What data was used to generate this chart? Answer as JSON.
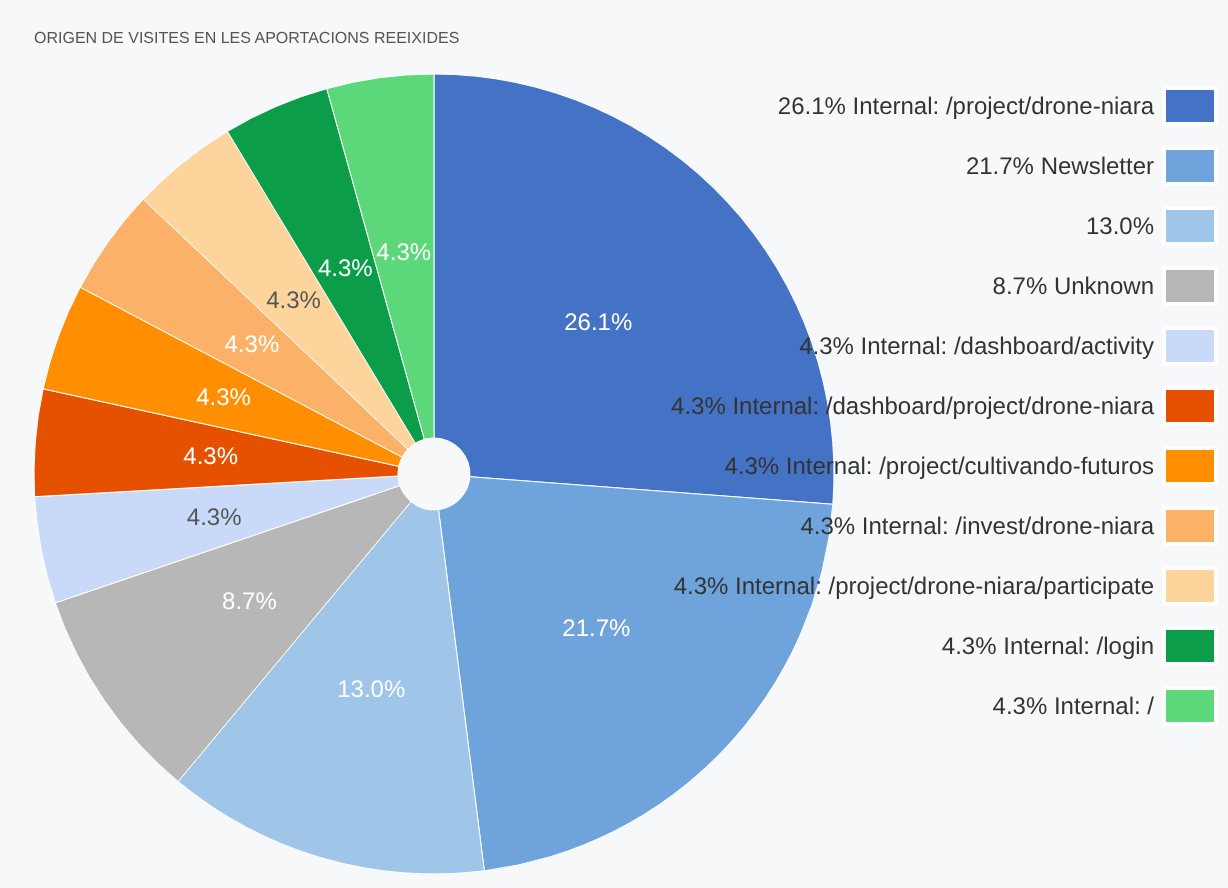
{
  "chart_data": {
    "type": "pie",
    "title": "ORIGEN DE VISITES EN LES APORTACIONS REEIXIDES",
    "categories": [
      "26.1% Internal: /project/drone-niara",
      "21.7% Newsletter",
      "13.0%",
      "8.7% Unknown",
      "4.3% Internal: /dashboard/activity",
      "4.3% Internal: /dashboard/project/drone-niara",
      "4.3% Internal: /project/cultivando-futuros",
      "4.3% Internal: /invest/drone-niara",
      "4.3% Internal: /project/drone-niara/participate",
      "4.3% Internal: /login",
      "4.3% Internal: /"
    ],
    "values": [
      26.1,
      21.7,
      13.0,
      8.7,
      4.3,
      4.3,
      4.3,
      4.3,
      4.3,
      4.3,
      4.3
    ],
    "value_labels": [
      "26.1%",
      "21.7%",
      "13.0%",
      "8.7%",
      "4.3%",
      "4.3%",
      "4.3%",
      "4.3%",
      "4.3%",
      "4.3%",
      "4.3%"
    ],
    "colors": [
      "#4472c4",
      "#6fa3dc",
      "#9fc5e8",
      "#b7b7b7",
      "#c9daf8",
      "#e65100",
      "#ff8f00",
      "#fbb167",
      "#fdd59c",
      "#0b9d4a",
      "#5cd77a"
    ],
    "legend": "right"
  }
}
